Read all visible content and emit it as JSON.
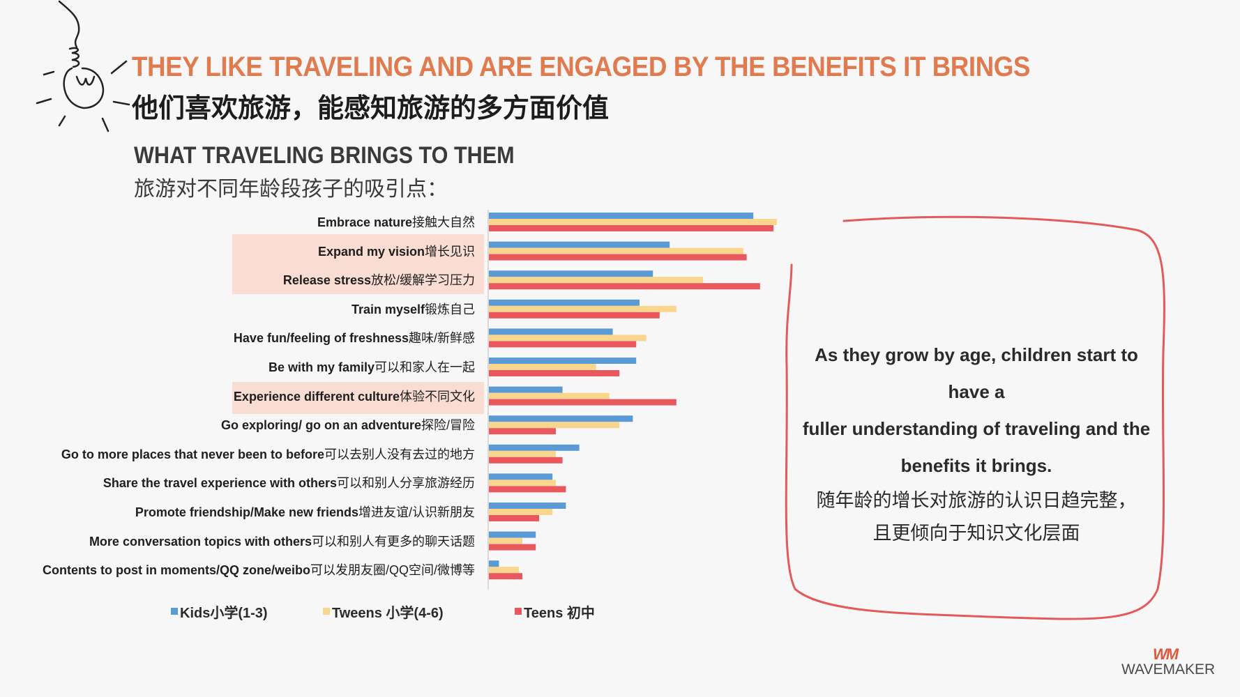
{
  "header": {
    "title_en": "THEY LIKE TRAVELING AND ARE ENGAGED BY THE BENEFITS IT BRINGS",
    "title_cn": "他们喜欢旅游，能感知旅游的多方面价值"
  },
  "section": {
    "title_en": "WHAT TRAVELING BRINGS TO THEM",
    "title_cn": "旅游对不同年龄段孩子的吸引点："
  },
  "chart_data": {
    "type": "bar",
    "orientation": "horizontal",
    "title": "WHAT TRAVELING BRINGS TO THEM",
    "categories": [
      {
        "en": "Embrace nature",
        "cn": "接触大自然"
      },
      {
        "en": "Expand my vision",
        "cn": "增长见识"
      },
      {
        "en": "Release stress",
        "cn": "放松/缓解学习压力"
      },
      {
        "en": "Train myself",
        "cn": "锻炼自己"
      },
      {
        "en": "Have fun/feeling of freshness",
        "cn": "趣味/新鲜感"
      },
      {
        "en": "Be with my family",
        "cn": "可以和家人在一起"
      },
      {
        "en": "Experience different culture",
        "cn": "体验不同文化"
      },
      {
        "en": "Go exploring/ go on an adventure",
        "cn": "探险/冒险"
      },
      {
        "en": "Go to more places that never been to before",
        "cn": "可以去别人没有去过的地方"
      },
      {
        "en": "Share the travel experience with others",
        "cn": "可以和别人分享旅游经历"
      },
      {
        "en": "Promote friendship/Make new friends",
        "cn": "增进友谊/认识新朋友"
      },
      {
        "en": "More conversation topics with others",
        "cn": "可以和别人有更多的聊天话题"
      },
      {
        "en": "Contents to post in moments/QQ zone/weibo",
        "cn": "可以发朋友圈/QQ空间/微博等"
      }
    ],
    "highlighted": [
      1,
      2,
      6
    ],
    "series": [
      {
        "name": "Kids小学(1-3)",
        "color": "#5b9bd5",
        "values": [
          79,
          54,
          49,
          45,
          37,
          44,
          22,
          43,
          27,
          19,
          23,
          14,
          3
        ]
      },
      {
        "name": "Tweens 小学(4-6)",
        "color": "#f9d58e",
        "values": [
          86,
          76,
          64,
          56,
          47,
          32,
          36,
          39,
          20,
          20,
          19,
          10,
          9
        ]
      },
      {
        "name": "Teens 初中",
        "color": "#e8585e",
        "values": [
          85,
          77,
          81,
          51,
          44,
          39,
          56,
          20,
          22,
          23,
          15,
          14,
          10
        ]
      }
    ],
    "xlim": [
      0,
      100
    ],
    "legend_position": "bottom"
  },
  "callout": {
    "en": "As they grow by age, children start to have a fuller understanding of traveling and the benefits it brings.",
    "en_lines": [
      "As they grow by age, children start to have a",
      "fuller understanding of traveling and the",
      "benefits it brings."
    ],
    "cn_lines": [
      "随年龄的增长对旅游的认识日趋完整，",
      "且更倾向于知识文化层面"
    ]
  },
  "logo": {
    "mark": "WM",
    "text": "WAVEMAKER"
  }
}
